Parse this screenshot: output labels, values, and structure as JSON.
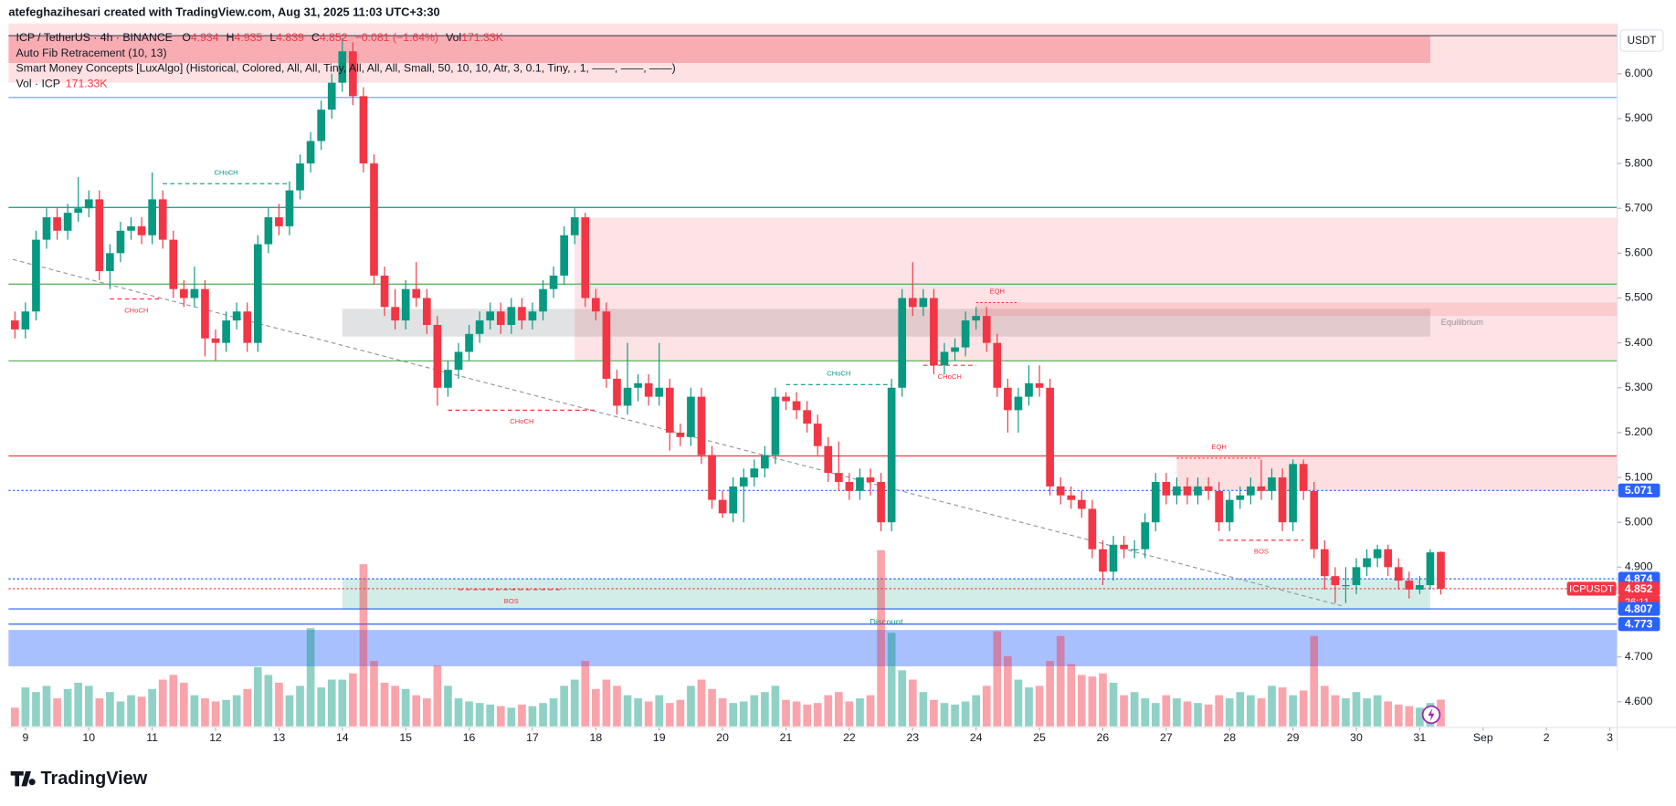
{
  "chart_data": {
    "type": "candlestick",
    "header": "atefeghazihesari created with TradingView.com, Aug 31, 2025 11:03 UTC+3:30",
    "title": "ICP / TetherUS · 4h · BINANCE",
    "ohlc_letters": [
      "O",
      "H",
      "L",
      "C"
    ],
    "change_label": "−0.081 (−1.64%)",
    "volume_name": "Vol",
    "volume_title": "Vol · ICP",
    "volume_label": "171.33K",
    "indicators": [
      "Auto Fib Retracement (10, 13)",
      "Smart Money Concepts [LuxAlgo] (Historical, Colored, All, All, Tiny, All, All, All, Small, 50, 10, 10, Atr, 3, 0.1, Tiny, , 1, ——, ——, ——)"
    ],
    "currency": "USDT",
    "logo": "TradingView",
    "up_color": "#089981",
    "down_color": "#f23645",
    "xlim": [
      -0.6,
      151.7
    ],
    "xticks": [
      {
        "value": 1,
        "label": "9"
      },
      {
        "value": 7,
        "label": "10"
      },
      {
        "value": 13,
        "label": "11"
      },
      {
        "value": 19,
        "label": "12"
      },
      {
        "value": 25,
        "label": "13"
      },
      {
        "value": 31,
        "label": "14"
      },
      {
        "value": 37,
        "label": "15"
      },
      {
        "value": 43,
        "label": "16"
      },
      {
        "value": 49,
        "label": "17"
      },
      {
        "value": 55,
        "label": "18"
      },
      {
        "value": 61,
        "label": "19"
      },
      {
        "value": 67,
        "label": "20"
      },
      {
        "value": 73,
        "label": "21"
      },
      {
        "value": 79,
        "label": "22"
      },
      {
        "value": 85,
        "label": "23"
      },
      {
        "value": 91,
        "label": "24"
      },
      {
        "value": 97,
        "label": "25"
      },
      {
        "value": 103,
        "label": "26"
      },
      {
        "value": 109,
        "label": "27"
      },
      {
        "value": 115,
        "label": "28"
      },
      {
        "value": 121,
        "label": "29"
      },
      {
        "value": 127,
        "label": "30"
      },
      {
        "value": 133,
        "label": "31"
      },
      {
        "value": 139,
        "label": "Sep"
      },
      {
        "value": 145,
        "label": "2"
      },
      {
        "value": 151,
        "label": "3"
      }
    ],
    "ylim": [
      4.545,
      6.112
    ],
    "yticks": [
      {
        "value": 4.6,
        "label": "4.600"
      },
      {
        "value": 4.7,
        "label": "4.700"
      },
      {
        "value": 4.8,
        "label": "4.800"
      },
      {
        "value": 4.9,
        "label": "4.900"
      },
      {
        "value": 5.0,
        "label": "5.000"
      },
      {
        "value": 5.1,
        "label": "5.100"
      },
      {
        "value": 5.2,
        "label": "5.200"
      },
      {
        "value": 5.3,
        "label": "5.300"
      },
      {
        "value": 5.4,
        "label": "5.400"
      },
      {
        "value": 5.5,
        "label": "5.500"
      },
      {
        "value": 5.6,
        "label": "5.600"
      },
      {
        "value": 5.7,
        "label": "5.700"
      },
      {
        "value": 5.8,
        "label": "5.800"
      },
      {
        "value": 5.9,
        "label": "5.900"
      },
      {
        "value": 6.0,
        "label": "6.000"
      }
    ],
    "open": [
      5.45,
      5.43,
      5.47,
      5.63,
      5.68,
      5.65,
      5.69,
      5.7,
      5.72,
      5.56,
      5.6,
      5.65,
      5.66,
      5.64,
      5.72,
      5.63,
      5.52,
      5.5,
      5.52,
      5.41,
      5.4,
      5.45,
      5.47,
      5.4,
      5.62,
      5.68,
      5.66,
      5.74,
      5.8,
      5.85,
      5.92,
      5.98,
      6.05,
      5.95,
      5.8,
      5.55,
      5.48,
      5.45,
      5.52,
      5.5,
      5.44,
      5.3,
      5.34,
      5.38,
      5.42,
      5.45,
      5.47,
      5.44,
      5.48,
      5.45,
      5.47,
      5.52,
      5.55,
      5.64,
      5.68,
      5.5,
      5.47,
      5.32,
      5.26,
      5.3,
      5.31,
      5.28,
      5.3,
      5.2,
      5.19,
      5.28,
      5.15,
      5.05,
      5.02,
      5.08,
      5.1,
      5.12,
      5.15,
      5.28,
      5.27,
      5.25,
      5.22,
      5.17,
      5.11,
      5.09,
      5.07,
      5.1,
      5.09,
      5.0,
      5.3,
      5.5,
      5.48,
      5.5,
      5.35,
      5.38,
      5.39,
      5.45,
      5.46,
      5.4,
      5.3,
      5.25,
      5.28,
      5.31,
      5.3,
      5.08,
      5.06,
      5.05,
      5.03,
      4.94,
      4.89,
      4.95,
      4.94,
      4.94,
      5.0,
      5.09,
      5.06,
      5.08,
      5.06,
      5.08,
      5.07,
      5.0,
      5.05,
      5.06,
      5.08,
      5.07,
      5.1,
      5.0,
      5.13,
      5.07,
      4.94,
      4.88,
      4.86,
      4.86,
      4.9,
      4.92,
      4.94,
      4.9,
      4.87,
      4.85,
      4.86,
      4.934
    ],
    "high": [
      5.47,
      5.49,
      5.65,
      5.7,
      5.7,
      5.71,
      5.77,
      5.74,
      5.74,
      5.62,
      5.67,
      5.68,
      5.68,
      5.78,
      5.74,
      5.65,
      5.54,
      5.57,
      5.54,
      5.43,
      5.47,
      5.49,
      5.49,
      5.64,
      5.7,
      5.71,
      5.76,
      5.82,
      5.87,
      5.94,
      6.0,
      6.08,
      6.07,
      5.97,
      5.82,
      5.57,
      5.52,
      5.54,
      5.58,
      5.52,
      5.46,
      5.36,
      5.4,
      5.44,
      5.47,
      5.49,
      5.49,
      5.5,
      5.5,
      5.49,
      5.54,
      5.57,
      5.66,
      5.7,
      5.69,
      5.52,
      5.49,
      5.34,
      5.4,
      5.33,
      5.33,
      5.4,
      5.32,
      5.22,
      5.3,
      5.3,
      5.17,
      5.07,
      5.1,
      5.12,
      5.14,
      5.17,
      5.3,
      5.29,
      5.29,
      5.27,
      5.24,
      5.19,
      5.18,
      5.11,
      5.12,
      5.12,
      5.11,
      5.32,
      5.52,
      5.58,
      5.52,
      5.52,
      5.4,
      5.41,
      5.47,
      5.48,
      5.48,
      5.42,
      5.32,
      5.3,
      5.35,
      5.35,
      5.32,
      5.1,
      5.08,
      5.07,
      5.05,
      4.96,
      4.97,
      4.97,
      4.96,
      5.02,
      5.11,
      5.11,
      5.1,
      5.1,
      5.1,
      5.1,
      5.09,
      5.07,
      5.08,
      5.1,
      5.14,
      5.12,
      5.12,
      5.14,
      5.14,
      5.09,
      4.96,
      4.9,
      4.9,
      4.92,
      4.94,
      4.95,
      4.95,
      4.92,
      4.89,
      4.88,
      4.94,
      4.935
    ],
    "low": [
      5.41,
      5.41,
      5.45,
      5.61,
      5.63,
      5.63,
      5.67,
      5.68,
      5.54,
      5.52,
      5.58,
      5.63,
      5.62,
      5.62,
      5.61,
      5.5,
      5.48,
      5.48,
      5.37,
      5.36,
      5.38,
      5.43,
      5.38,
      5.38,
      5.6,
      5.64,
      5.64,
      5.72,
      5.78,
      5.83,
      5.9,
      5.96,
      5.93,
      5.78,
      5.53,
      5.46,
      5.43,
      5.43,
      5.48,
      5.42,
      5.26,
      5.28,
      5.32,
      5.36,
      5.4,
      5.43,
      5.42,
      5.42,
      5.43,
      5.43,
      5.45,
      5.5,
      5.53,
      5.62,
      5.48,
      5.45,
      5.3,
      5.24,
      5.24,
      5.27,
      5.26,
      5.26,
      5.16,
      5.17,
      5.17,
      5.13,
      5.03,
      5.01,
      5.0,
      5.0,
      5.08,
      5.1,
      5.13,
      5.25,
      5.23,
      5.2,
      5.15,
      5.09,
      5.07,
      5.05,
      5.05,
      5.06,
      4.98,
      4.98,
      5.28,
      5.46,
      5.46,
      5.33,
      5.33,
      5.36,
      5.37,
      5.43,
      5.38,
      5.28,
      5.2,
      5.2,
      5.26,
      5.28,
      5.06,
      5.04,
      5.03,
      5.01,
      4.92,
      4.86,
      4.87,
      4.92,
      4.92,
      4.92,
      4.98,
      5.04,
      5.04,
      5.04,
      5.04,
      5.05,
      4.98,
      4.98,
      5.03,
      5.04,
      5.05,
      5.05,
      4.98,
      4.98,
      5.05,
      4.92,
      4.85,
      4.82,
      4.82,
      4.84,
      4.88,
      4.9,
      4.88,
      4.85,
      4.83,
      4.84,
      4.85,
      4.839
    ],
    "close": [
      5.43,
      5.47,
      5.63,
      5.68,
      5.65,
      5.69,
      5.7,
      5.72,
      5.56,
      5.6,
      5.65,
      5.66,
      5.64,
      5.72,
      5.63,
      5.52,
      5.5,
      5.52,
      5.41,
      5.4,
      5.45,
      5.47,
      5.4,
      5.62,
      5.68,
      5.66,
      5.74,
      5.8,
      5.85,
      5.92,
      5.98,
      6.05,
      5.95,
      5.8,
      5.55,
      5.48,
      5.45,
      5.52,
      5.5,
      5.44,
      5.3,
      5.34,
      5.38,
      5.42,
      5.45,
      5.47,
      5.44,
      5.48,
      5.45,
      5.47,
      5.52,
      5.55,
      5.64,
      5.68,
      5.5,
      5.47,
      5.32,
      5.26,
      5.3,
      5.31,
      5.28,
      5.3,
      5.2,
      5.19,
      5.28,
      5.15,
      5.05,
      5.02,
      5.08,
      5.1,
      5.12,
      5.15,
      5.28,
      5.27,
      5.25,
      5.22,
      5.17,
      5.11,
      5.09,
      5.07,
      5.1,
      5.09,
      5.0,
      5.3,
      5.5,
      5.48,
      5.5,
      5.35,
      5.38,
      5.39,
      5.45,
      5.46,
      5.4,
      5.3,
      5.25,
      5.28,
      5.31,
      5.3,
      5.08,
      5.06,
      5.05,
      5.03,
      4.94,
      4.89,
      4.95,
      4.94,
      4.94,
      5.0,
      5.09,
      5.06,
      5.08,
      5.06,
      5.08,
      5.07,
      5.0,
      5.05,
      5.06,
      5.08,
      5.07,
      5.1,
      5.0,
      5.13,
      5.07,
      4.94,
      4.88,
      4.86,
      4.86,
      4.9,
      4.92,
      4.94,
      4.9,
      4.87,
      4.85,
      4.86,
      4.933,
      4.852
    ],
    "volume": [
      120,
      250,
      220,
      260,
      180,
      240,
      280,
      260,
      180,
      220,
      160,
      200,
      190,
      240,
      300,
      330,
      280,
      200,
      180,
      160,
      170,
      200,
      240,
      380,
      330,
      280,
      200,
      260,
      630,
      250,
      300,
      300,
      340,
      1040,
      420,
      280,
      260,
      240,
      200,
      180,
      390,
      260,
      180,
      160,
      150,
      140,
      130,
      120,
      140,
      130,
      150,
      180,
      260,
      300,
      420,
      240,
      300,
      260,
      200,
      180,
      160,
      200,
      150,
      170,
      260,
      300,
      240,
      180,
      150,
      160,
      200,
      220,
      260,
      170,
      160,
      140,
      150,
      200,
      220,
      160,
      180,
      200,
      1130,
      600,
      360,
      300,
      220,
      170,
      150,
      140,
      160,
      200,
      260,
      610,
      450,
      300,
      250,
      260,
      420,
      580,
      400,
      330,
      320,
      340,
      280,
      200,
      220,
      180,
      150,
      200,
      180,
      160,
      150,
      140,
      200,
      180,
      220,
      200,
      180,
      260,
      250,
      200,
      230,
      580,
      260,
      200,
      180,
      220,
      180,
      200,
      160,
      140,
      130,
      120,
      150,
      171.33
    ],
    "levels": [
      {
        "value": 6.085,
        "color": "#434651",
        "style": "solid"
      },
      {
        "value": 5.947,
        "color": "#5b9cf6",
        "style": "solid"
      },
      {
        "value": 5.702,
        "color": "#089981",
        "style": "solid"
      },
      {
        "value": 5.531,
        "color": "#4caf50",
        "style": "solid"
      },
      {
        "value": 5.36,
        "color": "#4caf50",
        "style": "solid"
      },
      {
        "value": 5.148,
        "color": "#f23645",
        "style": "solid"
      },
      {
        "value": 5.071,
        "color": "#2962ff",
        "style": "dotted",
        "label": "5.071"
      },
      {
        "value": 4.874,
        "color": "#2962ff",
        "style": "dotted",
        "label": "4.874"
      },
      {
        "value": 4.852,
        "color": "#f23645",
        "style": "dotted",
        "label": "4.852",
        "symbol_tag": "ICPUSDT",
        "countdown": "26:11"
      },
      {
        "value": 4.807,
        "color": "#2962ff",
        "style": "solid",
        "label": "4.807"
      },
      {
        "value": 4.773,
        "color": "#2962ff",
        "style": "solid",
        "label": "4.773"
      }
    ],
    "zones": [
      {
        "x": [
          -0.6,
          151.7
        ],
        "y": [
          5.98,
          6.112
        ],
        "color": "rgba(242,54,69,0.15)"
      },
      {
        "x": [
          -0.6,
          134
        ],
        "y": [
          6.024,
          6.085
        ],
        "color": "rgba(242,54,69,0.3)"
      },
      {
        "x": [
          31,
          134
        ],
        "y": [
          5.414,
          5.476
        ],
        "color": "rgba(120,123,134,0.22)",
        "label": "Equilibrium"
      },
      {
        "x": [
          53,
          151.7
        ],
        "y": [
          5.36,
          5.679
        ],
        "color": "rgba(242,54,69,0.14)"
      },
      {
        "x": [
          91,
          151.7
        ],
        "y": [
          5.46,
          5.49
        ],
        "color": "rgba(242,54,69,0.14)"
      },
      {
        "x": [
          110,
          151.7
        ],
        "y": [
          5.071,
          5.148
        ],
        "color": "rgba(242,54,69,0.16)"
      },
      {
        "x": [
          31,
          134
        ],
        "y": [
          4.805,
          4.874
        ],
        "color": "rgba(8,153,129,0.18)",
        "label": "Discount"
      },
      {
        "x": [
          -0.6,
          151.7
        ],
        "y": [
          4.679,
          4.76
        ],
        "color": "rgba(41,98,255,0.4)"
      }
    ],
    "structures": [
      {
        "x": [
          14,
          26
        ],
        "y": 5.755,
        "label": "CHoCH",
        "color": "#089981",
        "style": "dashed"
      },
      {
        "x": [
          9,
          14
        ],
        "y": 5.498,
        "label": "CHoCH",
        "color": "#f23645",
        "style": "dashed"
      },
      {
        "x": [
          41,
          55
        ],
        "y": 5.25,
        "label": "CHoCH",
        "color": "#f23645",
        "style": "dashed"
      },
      {
        "x": [
          73,
          83
        ],
        "y": 5.307,
        "label": "CHoCH",
        "color": "#089981",
        "style": "dashed"
      },
      {
        "x": [
          86,
          91
        ],
        "y": 5.35,
        "label": "CHoCH",
        "color": "#f23645",
        "style": "dashed"
      },
      {
        "x": [
          91,
          95
        ],
        "y": 5.49,
        "label": "EQH",
        "color": "#f23645",
        "style": "dotted"
      },
      {
        "x": [
          110,
          118
        ],
        "y": 5.143,
        "label": "EQH",
        "color": "#f23645",
        "style": "dotted"
      },
      {
        "x": [
          114,
          122
        ],
        "y": 4.96,
        "label": "BOS",
        "color": "#f23645",
        "style": "dashed"
      },
      {
        "x": [
          42,
          52
        ],
        "y": 4.85,
        "label": "BOS",
        "color": "#f23645",
        "style": "dashed"
      }
    ],
    "trendline": {
      "x": [
        -0.2,
        125.6
      ],
      "y": [
        5.586,
        4.814
      ],
      "color": "#9598a1"
    }
  }
}
